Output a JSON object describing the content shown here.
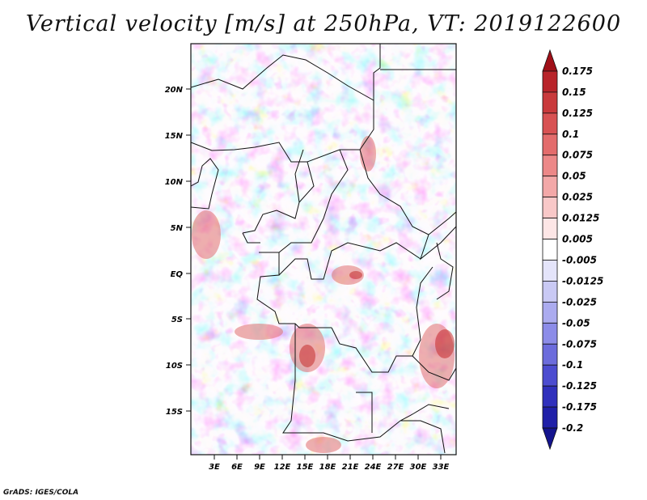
{
  "title": "Vertical velocity [m/s] at 250hPa, VT: 2019122600",
  "credit": "GrADS: IGES/COLA",
  "map": {
    "lat_labels": [
      "20N",
      "15N",
      "10N",
      "5N",
      "EQ",
      "5S",
      "10S",
      "15S"
    ],
    "lon_labels": [
      "3E",
      "6E",
      "9E",
      "12E",
      "15E",
      "18E",
      "21E",
      "24E",
      "27E",
      "30E",
      "33E"
    ]
  },
  "colorbar": {
    "labels": [
      "0.175",
      "0.15",
      "0.125",
      "0.1",
      "0.075",
      "0.05",
      "0.025",
      "0.0125",
      "0.005",
      "-0.005",
      "-0.0125",
      "-0.025",
      "-0.05",
      "-0.075",
      "-0.1",
      "-0.125",
      "-0.175",
      "-0.2"
    ],
    "colors": [
      "#a01018",
      "#b8242a",
      "#c93a3c",
      "#d85253",
      "#e36c6c",
      "#ec8888",
      "#f3a8a8",
      "#f8c8c8",
      "#fde6e6",
      "#ffffff",
      "#e4e4fa",
      "#c9c9f4",
      "#ababef",
      "#8c8ce8",
      "#6c6cdc",
      "#4c4cd0",
      "#3030bc",
      "#2020a8",
      "#14148e"
    ]
  }
}
